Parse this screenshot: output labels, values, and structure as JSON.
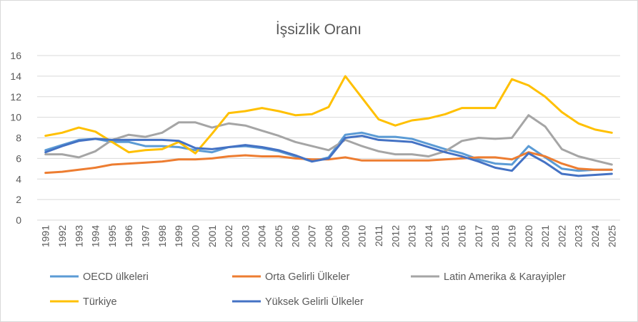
{
  "chart_data": {
    "type": "line",
    "title": "İşsizlik Oranı",
    "xlabel": "",
    "ylabel": "",
    "ylim": [
      0,
      16
    ],
    "yticks": [
      0,
      2,
      4,
      6,
      8,
      10,
      12,
      14,
      16
    ],
    "grid": true,
    "legend_position": "bottom",
    "categories": [
      "1991",
      "1992",
      "1993",
      "1994",
      "1995",
      "1996",
      "1997",
      "1998",
      "1999",
      "2000",
      "2001",
      "2002",
      "2003",
      "2004",
      "2005",
      "2006",
      "2007",
      "2008",
      "2009",
      "2010",
      "2011",
      "2012",
      "2013",
      "2014",
      "2015",
      "2016",
      "2017",
      "2018",
      "2019",
      "2020",
      "2021",
      "2022",
      "2023",
      "2024",
      "2025"
    ],
    "series": [
      {
        "name": "OECD ülkeleri",
        "color": "#5b9bd5",
        "values": [
          6.8,
          7.3,
          7.8,
          7.9,
          7.6,
          7.6,
          7.2,
          7.2,
          7.1,
          6.8,
          6.6,
          7.1,
          7.2,
          7.0,
          6.7,
          6.2,
          5.7,
          6.1,
          8.3,
          8.5,
          8.1,
          8.1,
          7.9,
          7.4,
          6.9,
          6.5,
          5.9,
          5.5,
          5.4,
          7.2,
          6.1,
          5.0,
          4.8,
          4.9,
          4.9
        ]
      },
      {
        "name": "Orta Gelirli Ülkeler",
        "color": "#ed7d31",
        "values": [
          4.6,
          4.7,
          4.9,
          5.1,
          5.4,
          5.5,
          5.6,
          5.7,
          5.9,
          5.9,
          6.0,
          6.2,
          6.3,
          6.2,
          6.2,
          6.0,
          5.9,
          5.9,
          6.1,
          5.8,
          5.8,
          5.8,
          5.8,
          5.8,
          5.9,
          6.0,
          6.1,
          6.1,
          5.9,
          6.6,
          6.2,
          5.5,
          5.0,
          4.9,
          4.9
        ]
      },
      {
        "name": "Latin Amerika & Karayipler",
        "color": "#a5a5a5",
        "values": [
          6.4,
          6.4,
          6.1,
          6.7,
          7.8,
          8.3,
          8.1,
          8.5,
          9.5,
          9.5,
          9.0,
          9.4,
          9.2,
          8.7,
          8.2,
          7.6,
          7.2,
          6.8,
          7.8,
          7.2,
          6.7,
          6.4,
          6.4,
          6.2,
          6.7,
          7.7,
          8.0,
          7.9,
          8.0,
          10.2,
          9.1,
          6.9,
          6.2,
          5.8,
          5.4
        ]
      },
      {
        "name": "Türkiye",
        "color": "#ffc000",
        "values": [
          8.2,
          8.5,
          9.0,
          8.6,
          7.6,
          6.6,
          6.8,
          6.9,
          7.6,
          6.5,
          8.4,
          10.4,
          10.6,
          10.9,
          10.6,
          10.2,
          10.3,
          11.0,
          14.0,
          11.9,
          9.8,
          9.2,
          9.7,
          9.9,
          10.3,
          10.9,
          10.9,
          10.9,
          13.7,
          13.1,
          12.0,
          10.5,
          9.4,
          8.8,
          8.5
        ]
      },
      {
        "name": "Yüksek Gelirli Ülkeler",
        "color": "#4472c4",
        "values": [
          6.6,
          7.2,
          7.7,
          7.9,
          7.8,
          7.8,
          7.8,
          7.8,
          7.7,
          7.0,
          6.9,
          7.1,
          7.3,
          7.1,
          6.8,
          6.3,
          5.7,
          6.0,
          8.0,
          8.2,
          7.8,
          7.7,
          7.6,
          7.1,
          6.6,
          6.2,
          5.7,
          5.1,
          4.8,
          6.5,
          5.6,
          4.5,
          4.3,
          4.4,
          4.5
        ]
      }
    ],
    "legend_layout": [
      [
        "OECD ülkeleri",
        "Orta Gelirli Ülkeler",
        "Latin Amerika & Karayipler"
      ],
      [
        "Türkiye",
        "Yüksek Gelirli Ülkeler"
      ]
    ]
  }
}
